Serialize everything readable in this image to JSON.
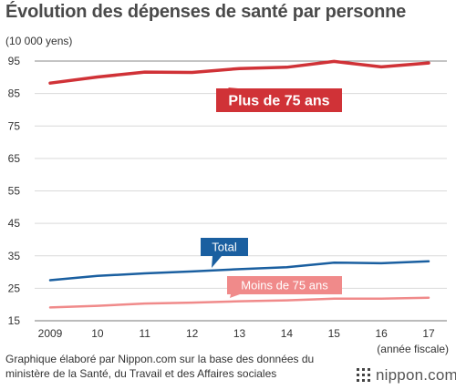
{
  "title": "Évolution des dépenses de santé par personne",
  "unit_label": "(10 000 yens)",
  "source": "Graphique élaboré par Nippon.com sur la base des données du ministère de la Santé, du Travail et des Affaires sociales",
  "brand": "nippon.com",
  "brand_icon": "nippon-logo-icon",
  "chart_data": {
    "type": "line",
    "x": [
      "2009",
      "10",
      "11",
      "12",
      "13",
      "14",
      "15",
      "16",
      "17"
    ],
    "xlabel": "(année fiscale)",
    "ylabel": "(10 000 yens)",
    "yticks": [
      15,
      25,
      35,
      45,
      55,
      65,
      75,
      85,
      95
    ],
    "ylim": [
      15,
      95
    ],
    "grid": true,
    "series": [
      {
        "name": "Plus de 75 ans",
        "color": "#d03237",
        "values": [
          88.2,
          90.1,
          91.6,
          91.5,
          92.7,
          93.1,
          94.9,
          93.2,
          94.4
        ]
      },
      {
        "name": "Total",
        "color": "#1a5fa0",
        "values": [
          27.5,
          28.8,
          29.6,
          30.2,
          30.9,
          31.5,
          32.9,
          32.7,
          33.3
        ]
      },
      {
        "name": "Moins de 75 ans",
        "color": "#f08a8a",
        "values": [
          19.1,
          19.6,
          20.3,
          20.6,
          21.0,
          21.3,
          21.8,
          21.8,
          22.1
        ]
      }
    ]
  }
}
